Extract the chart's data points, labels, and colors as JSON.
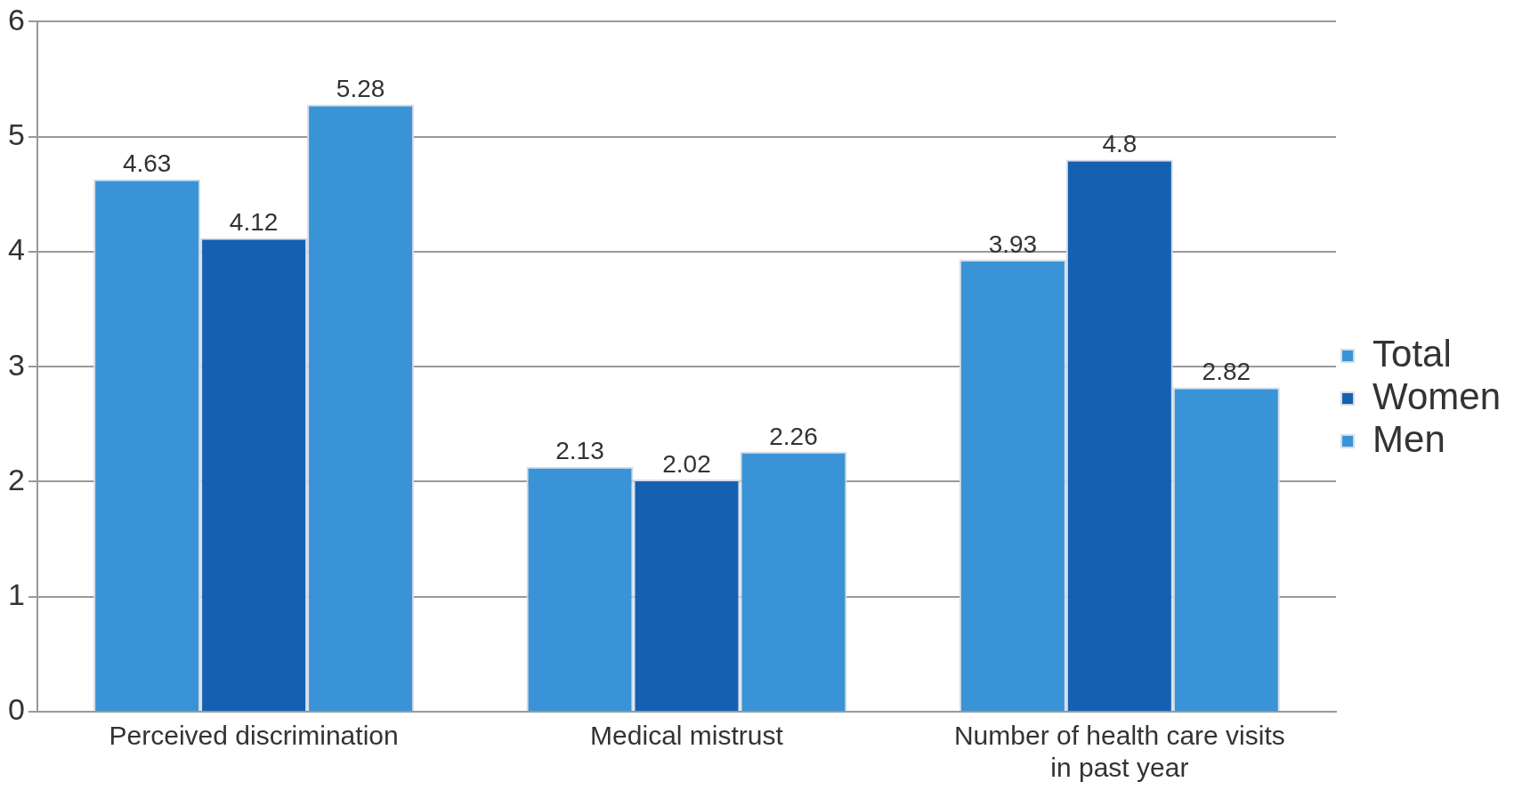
{
  "chart_data": {
    "type": "bar",
    "categories": [
      "Perceived discrimination",
      "Medical mistrust",
      "Number of health care visits in past year"
    ],
    "series": [
      {
        "name": "Total",
        "color": "#3a93d6",
        "values": [
          4.63,
          2.13,
          3.93
        ]
      },
      {
        "name": "Women",
        "color": "#1560b0",
        "values": [
          4.12,
          2.02,
          4.8
        ]
      },
      {
        "name": "Men",
        "color": "#3a93d6",
        "values": [
          5.28,
          2.26,
          2.82
        ]
      }
    ],
    "ylim": [
      0,
      6
    ],
    "yticks": [
      0,
      1,
      2,
      3,
      4,
      5,
      6
    ],
    "grid": "y",
    "legend": "right",
    "data_labels": true
  }
}
